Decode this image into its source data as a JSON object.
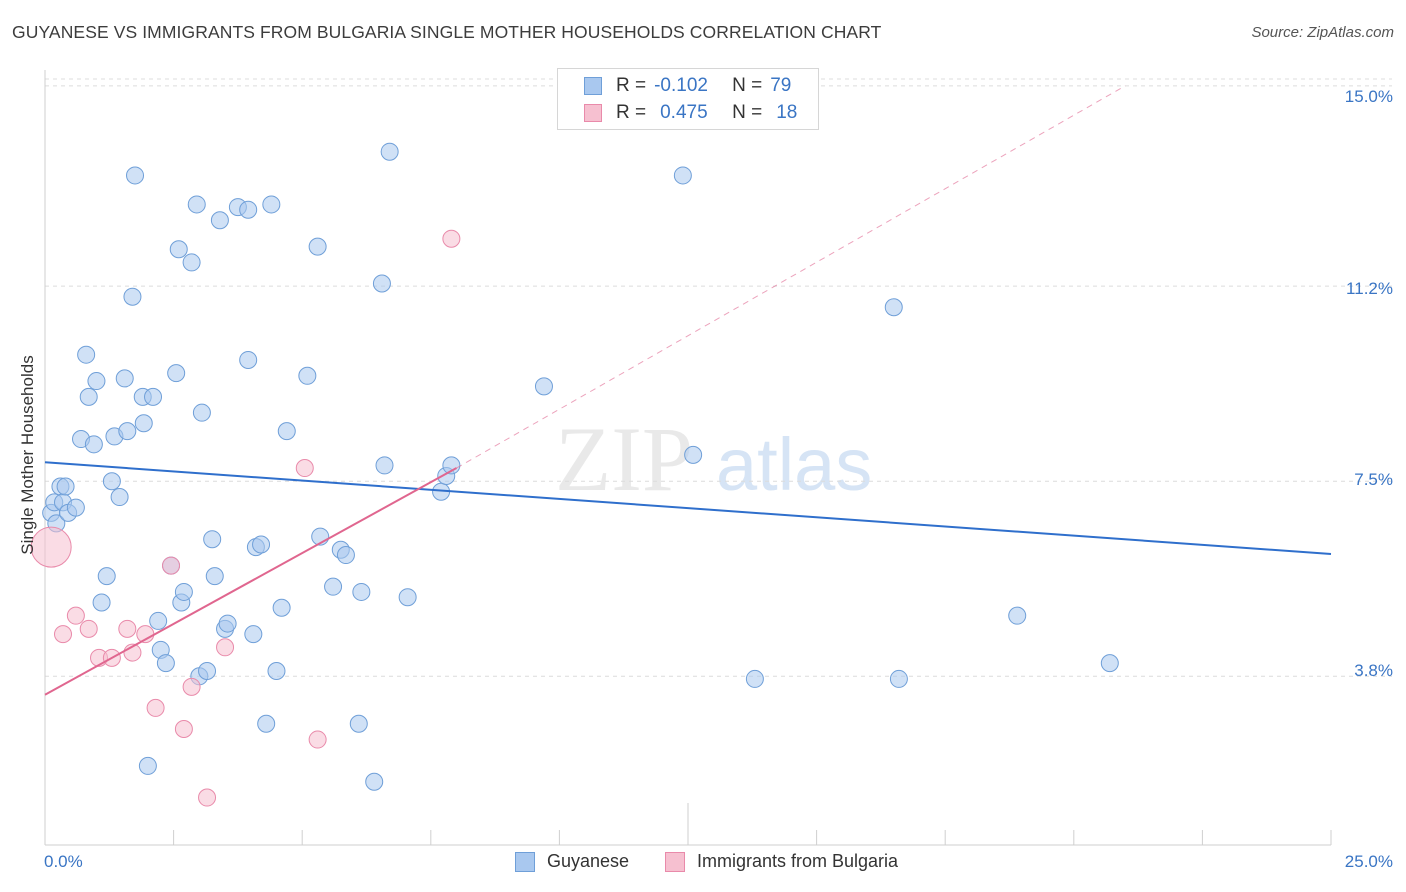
{
  "header": {
    "title": "GUYANESE VS IMMIGRANTS FROM BULGARIA SINGLE MOTHER HOUSEHOLDS CORRELATION CHART",
    "source": "Source: ZipAtlas.com"
  },
  "watermark": {
    "zip": "ZIP",
    "atlas": "atlas"
  },
  "legend_top": {
    "rows": [
      {
        "r_label": "R =",
        "r_value": "-0.102",
        "n_label": "N =",
        "n_value": "79"
      },
      {
        "r_label": "R =",
        "r_value": "0.475",
        "n_label": "N =",
        "n_value": "18"
      }
    ]
  },
  "legend_bottom": {
    "series1": "Guyanese",
    "series2": "Immigrants from Bulgaria"
  },
  "axes": {
    "x_min_label": "0.0%",
    "x_max_label": "25.0%",
    "y_ticks": [
      "15.0%",
      "11.2%",
      "7.5%",
      "3.8%"
    ],
    "ylabel": "Single Mother Households"
  },
  "colors": {
    "series1_fill": "#a9c8ef",
    "series1_stroke": "#6f9fd8",
    "series1_line": "#2f6fcc",
    "series2_fill": "#f6c0d0",
    "series2_stroke": "#e98aaa",
    "series2_line": "#e0668f",
    "grid": "#dcdcdc",
    "tick_label": "#3a75c4"
  },
  "chart_data": {
    "type": "scatter",
    "title": "GUYANESE VS IMMIGRANTS FROM BULGARIA SINGLE MOTHER HOUSEHOLDS CORRELATION CHART",
    "xlabel": "",
    "ylabel": "Single Mother Households",
    "xlim": [
      0,
      25
    ],
    "ylim": [
      0.6,
      15.3
    ],
    "y_gridlines": [
      3.8,
      7.5,
      11.2,
      15.0
    ],
    "grid": true,
    "legend_position": "top-center",
    "series": [
      {
        "name": "Guyanese",
        "trend": {
          "x": [
            0,
            25
          ],
          "y": [
            7.86,
            6.12
          ]
        },
        "points": [
          [
            0.12,
            6.9
          ],
          [
            0.18,
            7.1
          ],
          [
            0.22,
            6.7
          ],
          [
            0.3,
            7.4
          ],
          [
            0.35,
            7.1
          ],
          [
            0.4,
            7.4
          ],
          [
            0.45,
            6.9
          ],
          [
            0.6,
            7.0
          ],
          [
            0.7,
            8.3
          ],
          [
            0.8,
            9.9
          ],
          [
            0.85,
            9.1
          ],
          [
            0.95,
            8.2
          ],
          [
            1.0,
            9.4
          ],
          [
            1.1,
            5.2
          ],
          [
            1.2,
            5.7
          ],
          [
            1.3,
            7.5
          ],
          [
            1.35,
            8.35
          ],
          [
            1.45,
            7.2
          ],
          [
            1.55,
            9.45
          ],
          [
            1.6,
            8.45
          ],
          [
            1.7,
            11.0
          ],
          [
            1.75,
            13.3
          ],
          [
            1.9,
            9.1
          ],
          [
            1.92,
            8.6
          ],
          [
            2.0,
            2.1
          ],
          [
            2.1,
            9.1
          ],
          [
            2.2,
            4.85
          ],
          [
            2.25,
            4.3
          ],
          [
            2.35,
            4.05
          ],
          [
            2.45,
            5.9
          ],
          [
            2.55,
            9.55
          ],
          [
            2.6,
            11.9
          ],
          [
            2.65,
            5.2
          ],
          [
            2.7,
            5.4
          ],
          [
            2.85,
            11.65
          ],
          [
            2.95,
            12.75
          ],
          [
            3.0,
            3.8
          ],
          [
            3.05,
            8.8
          ],
          [
            3.15,
            3.9
          ],
          [
            3.25,
            6.4
          ],
          [
            3.3,
            5.7
          ],
          [
            3.4,
            12.45
          ],
          [
            3.5,
            4.7
          ],
          [
            3.55,
            4.8
          ],
          [
            3.75,
            12.7
          ],
          [
            3.95,
            12.65
          ],
          [
            3.95,
            9.8
          ],
          [
            4.05,
            4.6
          ],
          [
            4.1,
            6.25
          ],
          [
            4.2,
            6.3
          ],
          [
            4.3,
            2.9
          ],
          [
            4.4,
            12.75
          ],
          [
            4.5,
            3.9
          ],
          [
            4.6,
            5.1
          ],
          [
            4.7,
            8.45
          ],
          [
            5.1,
            9.5
          ],
          [
            5.3,
            11.95
          ],
          [
            5.35,
            6.45
          ],
          [
            5.6,
            5.5
          ],
          [
            5.75,
            6.2
          ],
          [
            5.85,
            6.1
          ],
          [
            6.1,
            2.9
          ],
          [
            6.15,
            5.4
          ],
          [
            6.4,
            1.8
          ],
          [
            6.55,
            11.25
          ],
          [
            6.6,
            7.8
          ],
          [
            6.7,
            13.75
          ],
          [
            7.05,
            5.3
          ],
          [
            7.7,
            7.3
          ],
          [
            7.8,
            7.6
          ],
          [
            7.9,
            7.8
          ],
          [
            9.7,
            9.3
          ],
          [
            12.4,
            13.3
          ],
          [
            12.6,
            8.0
          ],
          [
            13.8,
            3.75
          ],
          [
            16.5,
            10.8
          ],
          [
            16.6,
            3.75
          ],
          [
            18.9,
            4.95
          ],
          [
            20.7,
            4.05
          ]
        ]
      },
      {
        "name": "Immigrants from Bulgaria",
        "trend": {
          "x": [
            0,
            8.0
          ],
          "y": [
            3.45,
            7.75
          ]
        },
        "trend_extension": {
          "x": [
            8.0,
            21.0
          ],
          "y": [
            7.75,
            15.0
          ]
        },
        "points": [
          [
            0.12,
            6.25
          ],
          [
            0.35,
            4.6
          ],
          [
            0.6,
            4.95
          ],
          [
            0.85,
            4.7
          ],
          [
            1.05,
            4.15
          ],
          [
            1.3,
            4.15
          ],
          [
            1.6,
            4.7
          ],
          [
            1.7,
            4.25
          ],
          [
            1.95,
            4.6
          ],
          [
            2.15,
            3.2
          ],
          [
            2.45,
            5.9
          ],
          [
            2.7,
            2.8
          ],
          [
            2.85,
            3.6
          ],
          [
            3.15,
            1.5
          ],
          [
            3.5,
            4.35
          ],
          [
            5.05,
            7.75
          ],
          [
            5.3,
            2.6
          ],
          [
            7.9,
            12.1
          ]
        ]
      }
    ]
  }
}
